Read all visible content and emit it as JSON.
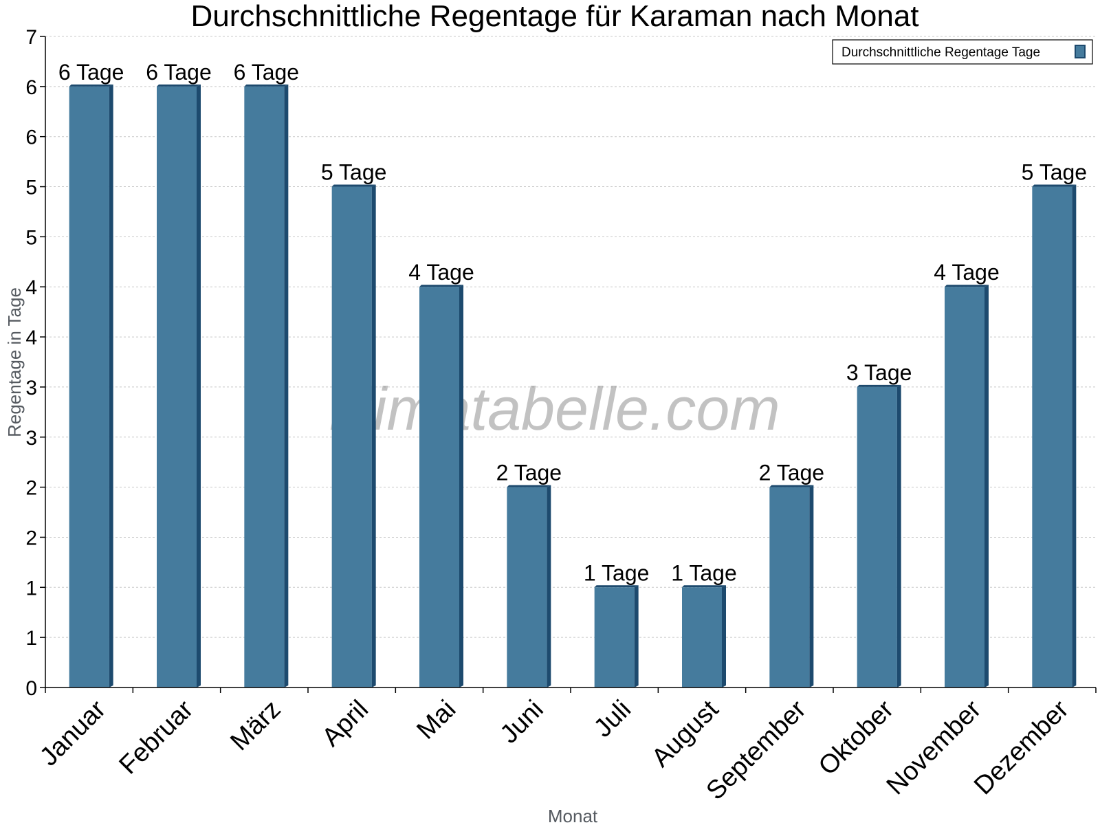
{
  "chart_data": {
    "type": "bar",
    "title": "Durchschnittliche Regentage für Karaman nach Monat",
    "xlabel": "Monat",
    "ylabel": "Regentage in Tage",
    "categories": [
      "Januar",
      "Februar",
      "März",
      "April",
      "Mai",
      "Juni",
      "Juli",
      "August",
      "September",
      "Oktober",
      "November",
      "Dezember"
    ],
    "series": [
      {
        "name": "Durchschnittliche Regentage Tage",
        "values": [
          6,
          6,
          6,
          5,
          4,
          2,
          1,
          1,
          2,
          3,
          4,
          5
        ],
        "data_labels": [
          "6 Tage",
          "6 Tage",
          "6 Tage",
          "5 Tage",
          "4 Tage",
          "2 Tage",
          "1 Tage",
          "1 Tage",
          "2 Tage",
          "3 Tage",
          "4 Tage",
          "5 Tage"
        ],
        "color": "#457b9d",
        "edge_color": "#1d4a6e"
      }
    ],
    "ylim": [
      0,
      6.5
    ],
    "ytick_values": [
      0,
      0.5,
      1,
      1.5,
      2,
      2.5,
      3,
      3.5,
      4,
      4.5,
      5,
      5.5,
      6,
      6.5
    ],
    "ytick_labels": [
      "0",
      "1",
      "1",
      "2",
      "2",
      "3",
      "3",
      "4",
      "4",
      "5",
      "5",
      "6",
      "6",
      "7"
    ],
    "grid": true,
    "legend": {
      "position": "top-right",
      "label": "Durchschnittliche Regentage Tage"
    },
    "watermark": "klimatabelle.com"
  }
}
